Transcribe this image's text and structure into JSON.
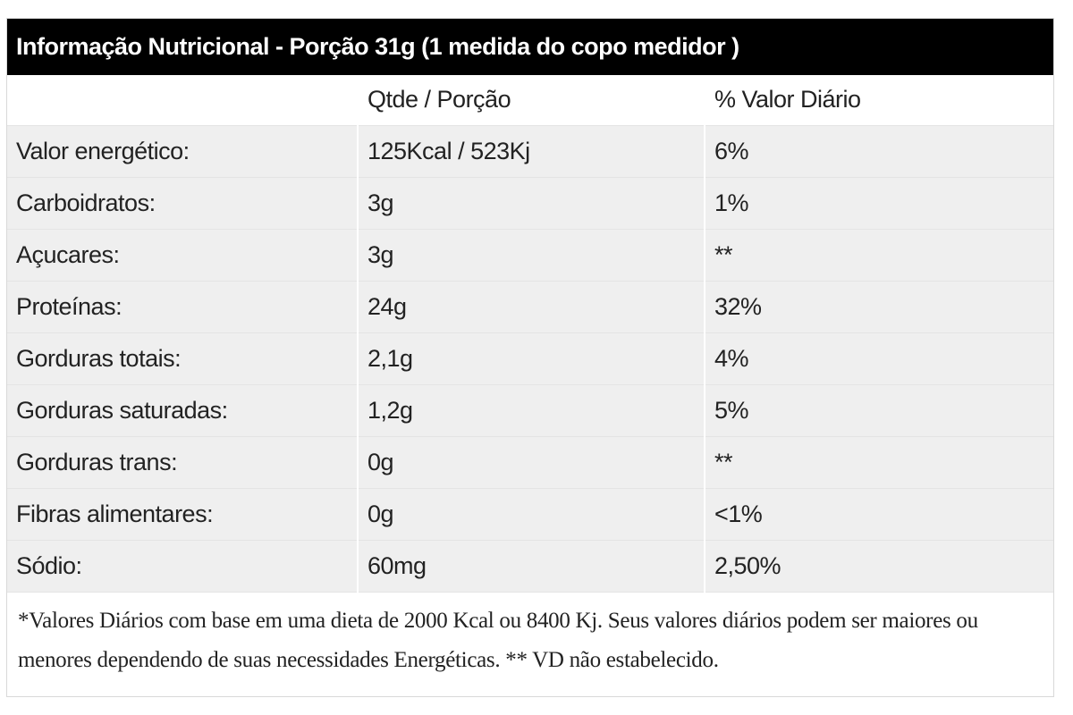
{
  "title": "Informação Nutricional - Porção 31g (1 medida do copo medidor )",
  "header": {
    "col_nutrient": "",
    "col_amount": "Qtde / Porção",
    "col_daily_value": "% Valor Diário"
  },
  "rows": [
    {
      "nutrient": "Valor energético:",
      "amount": "125Kcal / 523Kj",
      "daily_value": "6%"
    },
    {
      "nutrient": "Carboidratos:",
      "amount": "3g",
      "daily_value": "1%"
    },
    {
      "nutrient": "Açucares:",
      "amount": "3g",
      "daily_value": "**"
    },
    {
      "nutrient": "Proteínas:",
      "amount": "24g",
      "daily_value": "32%"
    },
    {
      "nutrient": "Gorduras totais:",
      "amount": "2,1g",
      "daily_value": "4%"
    },
    {
      "nutrient": "Gorduras saturadas:",
      "amount": "1,2g",
      "daily_value": "5%"
    },
    {
      "nutrient": "Gorduras trans:",
      "amount": "0g",
      "daily_value": "**"
    },
    {
      "nutrient": "Fibras alimentares:",
      "amount": "0g",
      "daily_value": "<1%"
    },
    {
      "nutrient": "Sódio:",
      "amount": "60mg",
      "daily_value": "2,50%"
    }
  ],
  "footnote_line1": "*Valores Diários com base em uma dieta de 2000 Kcal ou 8400 Kj. Seus valores diários podem ser maiores ou",
  "footnote_line2": "menores dependendo de suas necessidades Energéticas. ** VD não estabelecido."
}
